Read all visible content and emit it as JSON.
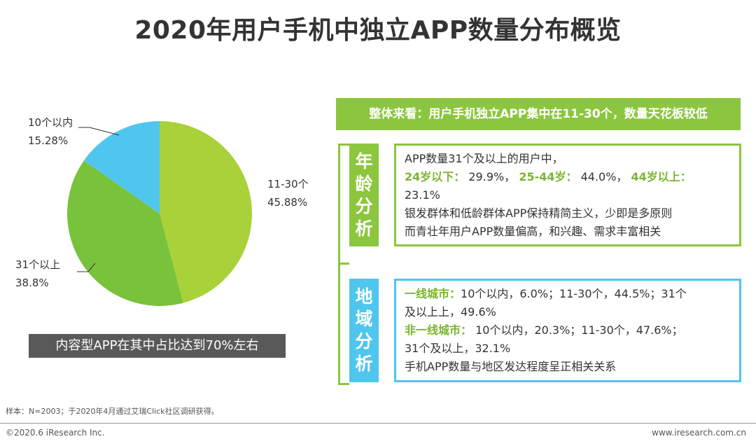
{
  "title": "2020年用户手机中独立APP数量分布概览",
  "chart_data": {
    "type": "pie",
    "slices": [
      {
        "label": "11-30个",
        "value": 45.88,
        "value_text": "45.88%",
        "color": "#a9d13a"
      },
      {
        "label": "31个以上",
        "value": 38.8,
        "value_text": "38.8%",
        "color": "#78c23c"
      },
      {
        "label": "10个以内",
        "value": 15.28,
        "value_text": "15.28%",
        "color": "#4fc6ee"
      }
    ]
  },
  "pie_note": "内容型APP在其中占比达到70%左右",
  "summary_banner": "整体来看：用户手机独立APP集中在11-30个，数量天花板较低",
  "age_section": {
    "tab_chars": [
      "年",
      "龄",
      "分",
      "析"
    ],
    "tab_color": "#8cc63f",
    "line1": "APP数量31个及以上的用户中，",
    "g1_label": "24岁以下：",
    "g1_value": "29.9%，",
    "g2_label": "25-44岁：",
    "g2_value": "44.0%，",
    "g3_label": "44岁以上：",
    "g3_value": "23.1%",
    "line4": "银发群体和低龄群体APP保持精简主义，少即是多原则",
    "line5": "而青壮年用户APP数量偏高，和兴趣、需求丰富相关"
  },
  "region_section": {
    "tab_chars": [
      "地",
      "域",
      "分",
      "析"
    ],
    "tab_color": "#4fc6ee",
    "t1_label": "一线城市：",
    "t1_text": "10个以内，6.0%；11-30个，44.5%；31个",
    "t1_text2": "及以上上，49.6%",
    "t2_label": "非一线城市：",
    "t2_text": " 10个以内，20.3%；11-30个，47.6%；",
    "t2_text2": "31个及以上，32.1%",
    "line5": "手机APP数量与地区发达程度呈正相关关系"
  },
  "footnote": "样本：N=2003；于2020年4月通过艾瑞Click社区调研获得。",
  "copyright": "©2020.6 iResearch Inc.",
  "website": "www.iresearch.com.cn"
}
